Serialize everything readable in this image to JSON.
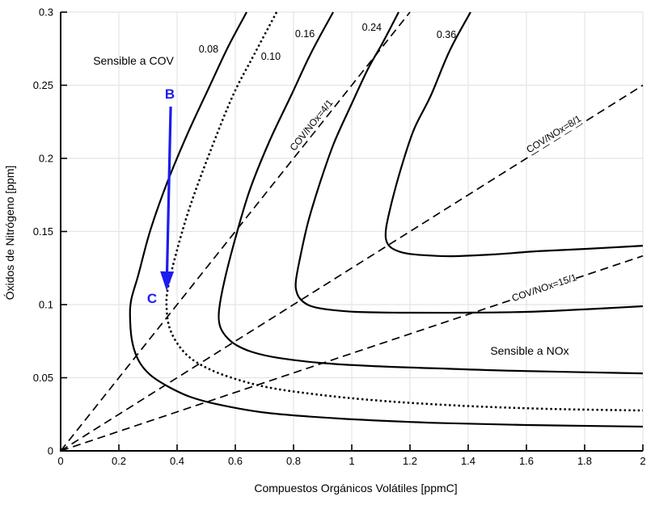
{
  "figure": {
    "background": "#ffffff",
    "colors": {
      "curve": "#000000",
      "axis": "#000000",
      "grid": "#e4e4e4",
      "annotation_blue": "#1c1cf0"
    }
  },
  "chart_data": {
    "type": "line",
    "subtype": "ozone-isopleth-EKMA-diagram",
    "title": "",
    "xlabel": "Compuestos Orgánicos Volátiles [ppmC]",
    "ylabel": "Óxidos de Nitrógeno [ppm]",
    "xlim": [
      0,
      2
    ],
    "ylim": [
      0,
      0.3
    ],
    "grid": true,
    "x_ticks": [
      0,
      0.2,
      0.4,
      0.6,
      0.8,
      1,
      1.2,
      1.4,
      1.6,
      1.8,
      2
    ],
    "x_tick_labels": [
      "0",
      "0.2",
      "0.4",
      "0.6",
      "0.8",
      "1",
      "1.2",
      "1.4",
      "1.6",
      "1.8",
      "2"
    ],
    "y_ticks": [
      0,
      0.05,
      0.1,
      0.15,
      0.2,
      0.25,
      0.3
    ],
    "y_tick_labels": [
      "0",
      "0.05",
      "0.1",
      "0.15",
      "0.2",
      "0.25",
      "0.3"
    ],
    "isopleths": [
      {
        "label": "0.08",
        "line_style": "solid",
        "label_pos": [
          0.508,
          0.2746
        ],
        "points": [
          [
            0.639,
            0.3
          ],
          [
            0.575,
            0.2762
          ],
          [
            0.514,
            0.2503
          ],
          [
            0.439,
            0.2182
          ],
          [
            0.367,
            0.184
          ],
          [
            0.308,
            0.1508
          ],
          [
            0.267,
            0.1204
          ],
          [
            0.242,
            0.1028
          ],
          [
            0.239,
            0.0884
          ],
          [
            0.247,
            0.0735
          ],
          [
            0.269,
            0.0613
          ],
          [
            0.308,
            0.0519
          ],
          [
            0.367,
            0.0442
          ],
          [
            0.444,
            0.037
          ],
          [
            0.547,
            0.0315
          ],
          [
            0.708,
            0.026
          ],
          [
            0.958,
            0.0221
          ],
          [
            1.264,
            0.0193
          ],
          [
            1.597,
            0.0177
          ],
          [
            2.0,
            0.0166
          ]
        ]
      },
      {
        "label": "0.10",
        "line_style": "dotted",
        "label_pos": [
          0.722,
          0.2696
        ],
        "points": [
          [
            0.742,
            0.3
          ],
          [
            0.664,
            0.2707
          ],
          [
            0.592,
            0.2431
          ],
          [
            0.511,
            0.2033
          ],
          [
            0.442,
            0.1657
          ],
          [
            0.392,
            0.1315
          ],
          [
            0.367,
            0.1094
          ],
          [
            0.364,
            0.0983
          ],
          [
            0.372,
            0.0856
          ],
          [
            0.397,
            0.0746
          ],
          [
            0.439,
            0.0646
          ],
          [
            0.5,
            0.0569
          ],
          [
            0.583,
            0.0503
          ],
          [
            0.708,
            0.0436
          ],
          [
            0.875,
            0.0387
          ],
          [
            1.097,
            0.0343
          ],
          [
            1.375,
            0.0309
          ],
          [
            1.681,
            0.0287
          ],
          [
            2.0,
            0.0276
          ]
        ]
      },
      {
        "label": "0.16",
        "line_style": "solid",
        "label_pos": [
          0.839,
          0.2851
        ],
        "points": [
          [
            0.936,
            0.3
          ],
          [
            0.861,
            0.2724
          ],
          [
            0.792,
            0.2431
          ],
          [
            0.717,
            0.2116
          ],
          [
            0.65,
            0.1785
          ],
          [
            0.6,
            0.1453
          ],
          [
            0.561,
            0.1149
          ],
          [
            0.544,
            0.0956
          ],
          [
            0.547,
            0.0856
          ],
          [
            0.567,
            0.0785
          ],
          [
            0.603,
            0.0724
          ],
          [
            0.661,
            0.0674
          ],
          [
            0.75,
            0.0635
          ],
          [
            0.889,
            0.0602
          ],
          [
            1.069,
            0.058
          ],
          [
            1.292,
            0.0564
          ],
          [
            1.569,
            0.0547
          ],
          [
            2.0,
            0.053
          ]
        ]
      },
      {
        "label": "0.24",
        "line_style": "solid",
        "label_pos": [
          1.069,
          0.2895
        ],
        "points": [
          [
            1.161,
            0.3
          ],
          [
            1.106,
            0.279
          ],
          [
            1.056,
            0.2613
          ],
          [
            0.994,
            0.2348
          ],
          [
            0.939,
            0.2105
          ],
          [
            0.892,
            0.184
          ],
          [
            0.85,
            0.1564
          ],
          [
            0.822,
            0.1315
          ],
          [
            0.808,
            0.116
          ],
          [
            0.811,
            0.1083
          ],
          [
            0.828,
            0.1028
          ],
          [
            0.861,
            0.0989
          ],
          [
            0.917,
            0.0967
          ],
          [
            1.014,
            0.095
          ],
          [
            1.167,
            0.0945
          ],
          [
            1.375,
            0.0945
          ],
          [
            1.597,
            0.095
          ],
          [
            1.792,
            0.0967
          ],
          [
            2.0,
            0.0989
          ]
        ]
      },
      {
        "label": "0.36",
        "line_style": "solid",
        "label_pos": [
          1.325,
          0.2845
        ],
        "points": [
          [
            1.408,
            0.3
          ],
          [
            1.336,
            0.2735
          ],
          [
            1.272,
            0.2431
          ],
          [
            1.214,
            0.2199
          ],
          [
            1.172,
            0.195
          ],
          [
            1.139,
            0.1713
          ],
          [
            1.119,
            0.1536
          ],
          [
            1.117,
            0.1453
          ],
          [
            1.128,
            0.1403
          ],
          [
            1.153,
            0.137
          ],
          [
            1.194,
            0.1348
          ],
          [
            1.258,
            0.1337
          ],
          [
            1.347,
            0.1331
          ],
          [
            1.486,
            0.1343
          ],
          [
            1.639,
            0.1365
          ],
          [
            1.806,
            0.1381
          ],
          [
            2.0,
            0.1403
          ]
        ]
      }
    ],
    "ratio_lines": [
      {
        "label": "COV/NOx=4/1",
        "from": [
          0,
          0
        ],
        "to": [
          1.2,
          0.3
        ],
        "label_pos": [
          0.861,
          0.2227
        ],
        "label_angle_deg": -51.5
      },
      {
        "label": "COV/NOx=8/1",
        "from": [
          0,
          0
        ],
        "to": [
          2,
          0.25
        ],
        "label_pos": [
          1.694,
          0.2166
        ],
        "label_angle_deg": -32
      },
      {
        "label": "COV/NOx=15/1",
        "from": [
          0,
          0
        ],
        "to": [
          2,
          0.1333
        ],
        "label_pos": [
          1.661,
          0.1116
        ],
        "label_angle_deg": -18.6
      }
    ],
    "region_labels": [
      {
        "text": "Sensible a COV",
        "pos": [
          0.25,
          0.2669
        ]
      },
      {
        "text": "Sensible a NOx",
        "pos": [
          1.611,
          0.0685
        ]
      }
    ],
    "annotations": {
      "points": [
        {
          "label": "B",
          "pos": [
            0.375,
            0.2442
          ]
        },
        {
          "label": "C",
          "pos": [
            0.314,
            0.1044
          ]
        }
      ],
      "arrow": {
        "from": [
          0.378,
          0.2354
        ],
        "to": [
          0.364,
          0.1094
        ]
      }
    }
  }
}
